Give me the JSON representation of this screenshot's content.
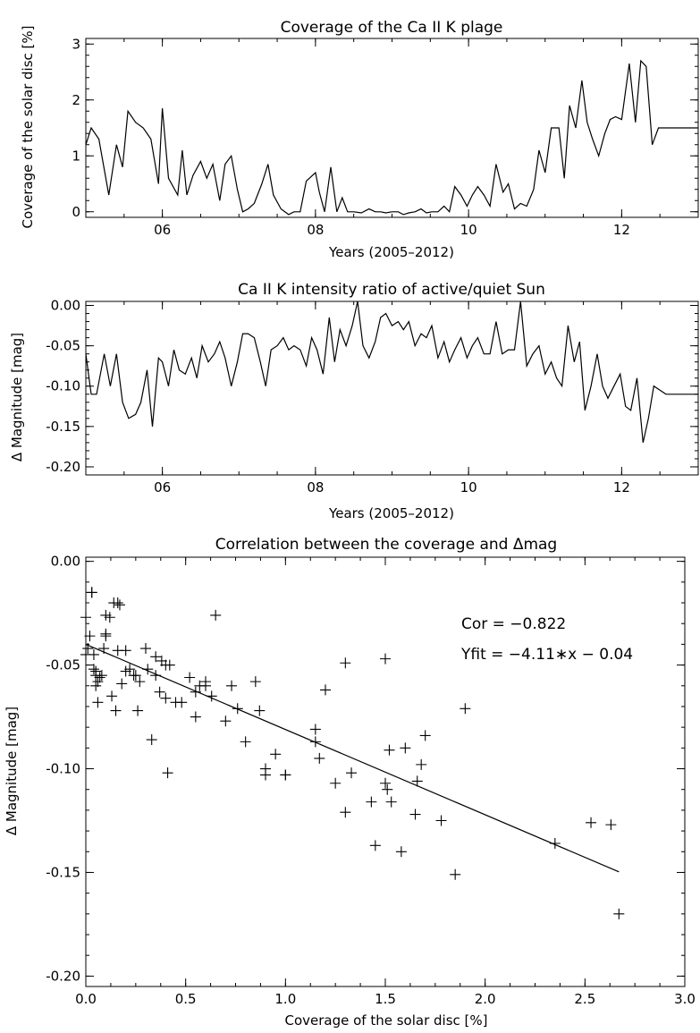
{
  "chart_data": [
    {
      "type": "line",
      "title": "Coverage of the Ca II K plage",
      "xlabel": "Years (2005–2012)",
      "ylabel": "Coverage of the solar disc [%]",
      "xlim": [
        5.0,
        13.0
      ],
      "ylim": [
        -0.1,
        3.1
      ],
      "xticks": [
        6,
        8,
        10,
        12
      ],
      "xtick_labels": [
        "06",
        "08",
        "10",
        "12"
      ],
      "yticks": [
        0,
        1,
        2,
        3
      ],
      "ytick_labels": [
        "0",
        "1",
        "2",
        "3"
      ],
      "series": [
        {
          "x": [
            5.0,
            5.07,
            5.17,
            5.3,
            5.4,
            5.48,
            5.55,
            5.65,
            5.75,
            5.85,
            5.95,
            6.0,
            6.08,
            6.2,
            6.26,
            6.32,
            6.4,
            6.5,
            6.58,
            6.66,
            6.75,
            6.82,
            6.9,
            6.98,
            7.05,
            7.12,
            7.2,
            7.3,
            7.38,
            7.45,
            7.55,
            7.65,
            7.72,
            7.8,
            7.88,
            8.0,
            8.05,
            8.12,
            8.2,
            8.28,
            8.35,
            8.42,
            8.5,
            8.6,
            8.7,
            8.78,
            8.85,
            8.92,
            9.0,
            9.08,
            9.15,
            9.22,
            9.3,
            9.38,
            9.45,
            9.52,
            9.6,
            9.68,
            9.75,
            9.82,
            9.9,
            9.98,
            10.05,
            10.12,
            10.2,
            10.28,
            10.36,
            10.45,
            10.52,
            10.6,
            10.68,
            10.76,
            10.85,
            10.92,
            11.0,
            11.08,
            11.18,
            11.25,
            11.32,
            11.4,
            11.48,
            11.55,
            11.62,
            11.7,
            11.78,
            11.85,
            11.92,
            12.0,
            12.1,
            12.18,
            12.25,
            12.32,
            12.4,
            12.48,
            12.55,
            12.62,
            12.7,
            12.78,
            12.85,
            12.92,
            13.0
          ],
          "y": [
            1.2,
            1.5,
            1.3,
            0.3,
            1.2,
            0.8,
            1.8,
            1.6,
            1.5,
            1.3,
            0.5,
            1.85,
            0.6,
            0.3,
            1.1,
            0.3,
            0.65,
            0.9,
            0.6,
            0.85,
            0.2,
            0.85,
            1.0,
            0.4,
            0.0,
            0.05,
            0.15,
            0.5,
            0.85,
            0.3,
            0.05,
            -0.05,
            0.0,
            0.0,
            0.55,
            0.7,
            0.35,
            0.0,
            0.8,
            0.0,
            0.25,
            0.0,
            0.0,
            -0.02,
            0.05,
            0.0,
            0.0,
            -0.02,
            0.0,
            0.0,
            -0.05,
            -0.02,
            0.0,
            0.05,
            -0.02,
            0.0,
            0.0,
            0.1,
            0.0,
            0.45,
            0.3,
            0.1,
            0.3,
            0.45,
            0.3,
            0.1,
            0.85,
            0.35,
            0.5,
            0.05,
            0.15,
            0.1,
            0.4,
            1.1,
            0.7,
            1.5,
            1.5,
            0.6,
            1.9,
            1.5,
            2.35,
            1.6,
            1.3,
            1.0,
            1.4,
            1.65,
            1.7,
            1.65,
            2.65,
            1.6,
            2.7,
            2.6,
            1.2,
            1.5,
            1.5,
            1.5,
            1.5,
            1.5,
            1.5,
            1.5,
            1.5
          ]
        }
      ]
    },
    {
      "type": "line",
      "title": "Ca II K intensity ratio of active/quiet Sun",
      "xlabel": "Years (2005–2012)",
      "ylabel": "Δ Magnitude [mag]",
      "xlim": [
        5.0,
        13.0
      ],
      "ylim": [
        -0.21,
        0.005
      ],
      "xticks": [
        6,
        8,
        10,
        12
      ],
      "xtick_labels": [
        "06",
        "08",
        "10",
        "12"
      ],
      "yticks": [
        0.0,
        -0.05,
        -0.1,
        -0.15,
        -0.2
      ],
      "ytick_labels": [
        "0.00",
        "-0.05",
        "-0.10",
        "-0.15",
        "-0.20"
      ],
      "series": [
        {
          "x": [
            5.0,
            5.07,
            5.14,
            5.24,
            5.32,
            5.4,
            5.48,
            5.56,
            5.65,
            5.72,
            5.8,
            5.87,
            5.95,
            6.0,
            6.08,
            6.15,
            6.22,
            6.3,
            6.38,
            6.45,
            6.52,
            6.6,
            6.68,
            6.75,
            6.82,
            6.9,
            6.98,
            7.05,
            7.12,
            7.2,
            7.28,
            7.35,
            7.42,
            7.5,
            7.58,
            7.65,
            7.72,
            7.8,
            7.88,
            7.95,
            8.02,
            8.1,
            8.18,
            8.25,
            8.32,
            8.4,
            8.48,
            8.55,
            8.62,
            8.7,
            8.78,
            8.85,
            8.92,
            9.0,
            9.08,
            9.15,
            9.22,
            9.3,
            9.38,
            9.45,
            9.52,
            9.6,
            9.68,
            9.75,
            9.82,
            9.9,
            9.98,
            10.05,
            10.12,
            10.2,
            10.28,
            10.36,
            10.44,
            10.52,
            10.6,
            10.68,
            10.76,
            10.84,
            10.92,
            11.0,
            11.08,
            11.15,
            11.22,
            11.3,
            11.38,
            11.45,
            11.52,
            11.6,
            11.68,
            11.75,
            11.82,
            11.9,
            11.98,
            12.05,
            12.12,
            12.2,
            12.28,
            12.35,
            12.42,
            12.5,
            12.58,
            12.65,
            12.72,
            12.8,
            12.88,
            12.96,
            13.0
          ],
          "y": [
            -0.06,
            -0.11,
            -0.11,
            -0.06,
            -0.1,
            -0.06,
            -0.12,
            -0.14,
            -0.135,
            -0.12,
            -0.08,
            -0.15,
            -0.065,
            -0.07,
            -0.1,
            -0.055,
            -0.08,
            -0.085,
            -0.065,
            -0.09,
            -0.05,
            -0.07,
            -0.06,
            -0.045,
            -0.065,
            -0.1,
            -0.07,
            -0.035,
            -0.035,
            -0.04,
            -0.07,
            -0.1,
            -0.055,
            -0.05,
            -0.04,
            -0.055,
            -0.05,
            -0.055,
            -0.075,
            -0.04,
            -0.055,
            -0.085,
            -0.015,
            -0.07,
            -0.03,
            -0.05,
            -0.025,
            0.005,
            -0.05,
            -0.065,
            -0.045,
            -0.015,
            -0.01,
            -0.025,
            -0.02,
            -0.03,
            -0.02,
            -0.05,
            -0.035,
            -0.04,
            -0.025,
            -0.065,
            -0.045,
            -0.07,
            -0.055,
            -0.04,
            -0.065,
            -0.05,
            -0.04,
            -0.06,
            -0.06,
            -0.02,
            -0.06,
            -0.055,
            -0.055,
            0.005,
            -0.075,
            -0.06,
            -0.05,
            -0.085,
            -0.07,
            -0.09,
            -0.1,
            -0.025,
            -0.07,
            -0.045,
            -0.13,
            -0.1,
            -0.06,
            -0.1,
            -0.115,
            -0.1,
            -0.085,
            -0.125,
            -0.13,
            -0.09,
            -0.17,
            -0.14,
            -0.1,
            -0.105,
            -0.11,
            -0.11,
            -0.11,
            -0.11,
            -0.11,
            -0.11,
            -0.11
          ]
        }
      ]
    },
    {
      "type": "scatter",
      "title": "Correlation between the coverage and Δmag",
      "xlabel": "Coverage of the solar disc [%]",
      "ylabel": "Δ Magnitude [mag]",
      "xlim": [
        0.0,
        3.0
      ],
      "ylim": [
        -0.205,
        0.002
      ],
      "xticks": [
        0.0,
        0.5,
        1.0,
        1.5,
        2.0,
        2.5,
        3.0
      ],
      "xtick_labels": [
        "0.0",
        "0.5",
        "1.0",
        "1.5",
        "2.0",
        "2.5",
        "3.0"
      ],
      "yticks": [
        0.0,
        -0.05,
        -0.1,
        -0.15,
        -0.2
      ],
      "ytick_labels": [
        "0.00",
        "-0.05",
        "-0.10",
        "-0.15",
        "-0.20"
      ],
      "points": {
        "x": [
          0.0,
          0.0,
          0.01,
          0.02,
          0.03,
          0.03,
          0.04,
          0.04,
          0.05,
          0.05,
          0.06,
          0.06,
          0.07,
          0.08,
          0.09,
          0.1,
          0.12,
          0.13,
          0.14,
          0.15,
          0.16,
          0.17,
          0.18,
          0.2,
          0.22,
          0.24,
          0.26,
          0.27,
          0.3,
          0.31,
          0.33,
          0.35,
          0.37,
          0.38,
          0.4,
          0.41,
          0.42,
          0.45,
          0.48,
          0.52,
          0.55,
          0.57,
          0.6,
          0.63,
          0.65,
          0.7,
          0.73,
          0.76,
          0.8,
          0.85,
          0.87,
          0.9,
          0.9,
          0.95,
          1.0,
          1.0,
          1.15,
          1.15,
          1.17,
          1.2,
          1.25,
          1.3,
          1.3,
          1.33,
          1.43,
          1.45,
          1.5,
          1.5,
          1.51,
          1.52,
          1.53,
          1.58,
          1.6,
          1.65,
          1.66,
          1.68,
          1.7,
          1.78,
          1.85,
          1.9,
          2.35,
          2.53,
          2.63,
          2.67,
          0.05,
          0.1,
          0.2,
          0.25,
          0.35,
          0.4,
          0.55,
          0.6,
          0.1,
          0.16
        ],
        "y": [
          -0.027,
          -0.045,
          -0.042,
          -0.036,
          -0.015,
          -0.015,
          -0.045,
          -0.052,
          -0.055,
          -0.06,
          -0.068,
          -0.058,
          -0.056,
          -0.055,
          -0.042,
          -0.036,
          -0.027,
          -0.065,
          -0.02,
          -0.072,
          -0.043,
          -0.021,
          -0.059,
          -0.043,
          -0.052,
          -0.055,
          -0.072,
          -0.058,
          -0.042,
          -0.052,
          -0.086,
          -0.055,
          -0.063,
          -0.048,
          -0.066,
          -0.102,
          -0.05,
          -0.068,
          -0.068,
          -0.056,
          -0.075,
          -0.06,
          -0.058,
          -0.065,
          -0.026,
          -0.077,
          -0.06,
          -0.071,
          -0.087,
          -0.058,
          -0.072,
          -0.1,
          -0.103,
          -0.093,
          -0.103,
          -0.103,
          -0.087,
          -0.081,
          -0.095,
          -0.062,
          -0.107,
          -0.049,
          -0.121,
          -0.102,
          -0.116,
          -0.137,
          -0.047,
          -0.107,
          -0.11,
          -0.091,
          -0.116,
          -0.14,
          -0.09,
          -0.122,
          -0.106,
          -0.098,
          -0.084,
          -0.125,
          -0.151,
          -0.071,
          -0.136,
          -0.126,
          -0.127,
          -0.17,
          -0.053,
          -0.035,
          -0.053,
          -0.055,
          -0.046,
          -0.05,
          -0.063,
          -0.06,
          -0.026,
          -0.02
        ]
      },
      "fit": {
        "slope": -0.0411,
        "intercept": -0.04,
        "x_range": [
          0.0,
          2.67
        ]
      },
      "annotations": [
        "Cor = −0.822",
        "Yfit = −4.11∗x − 0.04"
      ]
    }
  ]
}
